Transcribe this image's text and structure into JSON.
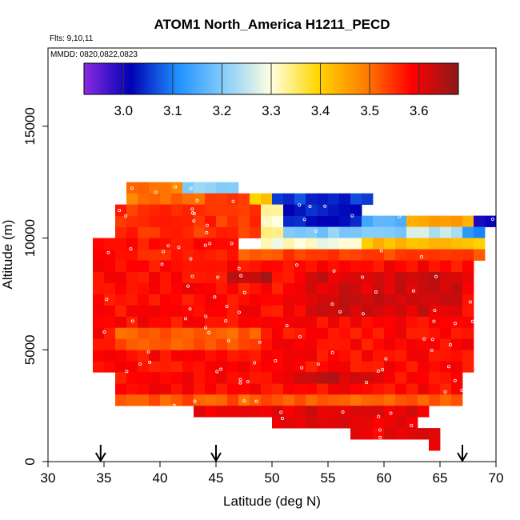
{
  "chart_data": {
    "type": "heatmap",
    "title": "ATOM1 North_America H1211_PECD",
    "annotations": [
      "Flts: 9,10,11",
      "MMDD: 0820,0822,0823"
    ],
    "xlabel": "Latitude (deg N)",
    "ylabel": "Altitude (m)",
    "xlim": [
      30,
      70
    ],
    "ylim": [
      0,
      18500
    ],
    "xticks": [
      30,
      35,
      40,
      45,
      50,
      55,
      60,
      65,
      70
    ],
    "yticks": [
      0,
      5000,
      10000,
      15000
    ],
    "grid": false,
    "colorbar": {
      "min": 2.92,
      "max": 3.68,
      "ticks": [
        3.0,
        3.1,
        3.2,
        3.3,
        3.4,
        3.5,
        3.6
      ],
      "tick_labels": [
        "3.0",
        "3.1",
        "3.2",
        "3.3",
        "3.4",
        "3.5",
        "3.6"
      ],
      "colors": [
        "#8a2be2",
        "#0000b4",
        "#1e90ff",
        "#87cefa",
        "#ffffe0",
        "#ffd700",
        "#ff7f00",
        "#ff0000",
        "#8b1a1a"
      ]
    },
    "arrows_latitude": [
      34.7,
      45,
      67
    ],
    "cell": {
      "lat_width": 1,
      "alt_height": 500
    },
    "value_bands": [
      {
        "lat": [
          37,
          42
        ],
        "alt": [
          12000,
          12500
        ],
        "value": 3.5
      },
      {
        "lat": [
          42,
          47
        ],
        "alt": [
          12000,
          12500
        ],
        "value": 3.22
      },
      {
        "lat": [
          37,
          44
        ],
        "alt": [
          11500,
          12000
        ],
        "value": 3.5
      },
      {
        "lat": [
          44,
          48
        ],
        "alt": [
          11500,
          12000
        ],
        "value": 3.55
      },
      {
        "lat": [
          48,
          50
        ],
        "alt": [
          11500,
          12000
        ],
        "value": 3.4
      },
      {
        "lat": [
          50,
          59
        ],
        "alt": [
          11500,
          12000
        ],
        "value": 3.05
      },
      {
        "lat": [
          36,
          49
        ],
        "alt": [
          10000,
          11500
        ],
        "value": 3.55
      },
      {
        "lat": [
          49,
          51
        ],
        "alt": [
          10000,
          11500
        ],
        "value": 3.32
      },
      {
        "lat": [
          51,
          58
        ],
        "alt": [
          10500,
          11500
        ],
        "value": 3.03
      },
      {
        "lat": [
          58,
          62
        ],
        "alt": [
          10500,
          11000
        ],
        "value": 3.15
      },
      {
        "lat": [
          62,
          68
        ],
        "alt": [
          10500,
          11000
        ],
        "value": 3.45
      },
      {
        "lat": [
          68,
          70
        ],
        "alt": [
          10500,
          11000
        ],
        "value": 3.0
      },
      {
        "lat": [
          51,
          62
        ],
        "alt": [
          10000,
          10500
        ],
        "value": 3.2
      },
      {
        "lat": [
          62,
          67
        ],
        "alt": [
          10000,
          10500
        ],
        "value": 3.25
      },
      {
        "lat": [
          67,
          69
        ],
        "alt": [
          10000,
          10500
        ],
        "value": 3.1
      },
      {
        "lat": [
          49,
          58
        ],
        "alt": [
          9500,
          10000
        ],
        "value": 3.3
      },
      {
        "lat": [
          58,
          69
        ],
        "alt": [
          9500,
          10000
        ],
        "value": 3.42
      },
      {
        "lat": [
          34,
          47
        ],
        "alt": [
          9000,
          10000
        ],
        "value": 3.57
      },
      {
        "lat": [
          47,
          69
        ],
        "alt": [
          9000,
          9500
        ],
        "value": 3.53
      },
      {
        "lat": [
          34,
          68
        ],
        "alt": [
          4000,
          9000
        ],
        "value": 3.58
      },
      {
        "lat": [
          46,
          50
        ],
        "alt": [
          8000,
          8500
        ],
        "value": 3.65
      },
      {
        "lat": [
          53,
          67
        ],
        "alt": [
          6500,
          8500
        ],
        "value": 3.62
      },
      {
        "lat": [
          36,
          49
        ],
        "alt": [
          5000,
          6000
        ],
        "value": 3.52
      },
      {
        "lat": [
          36,
          67
        ],
        "alt": [
          3000,
          4000
        ],
        "value": 3.58
      },
      {
        "lat": [
          52,
          60
        ],
        "alt": [
          3500,
          4000
        ],
        "value": 3.63
      },
      {
        "lat": [
          36,
          67
        ],
        "alt": [
          2500,
          3000
        ],
        "value": 3.52
      },
      {
        "lat": [
          43,
          64
        ],
        "alt": [
          2000,
          2500
        ],
        "value": 3.61
      },
      {
        "lat": [
          50,
          63
        ],
        "alt": [
          1500,
          2000
        ],
        "value": 3.6
      },
      {
        "lat": [
          57,
          65
        ],
        "alt": [
          1000,
          1500
        ],
        "value": 3.6
      },
      {
        "lat": [
          64,
          65
        ],
        "alt": [
          500,
          1000
        ],
        "value": 3.6
      }
    ]
  }
}
